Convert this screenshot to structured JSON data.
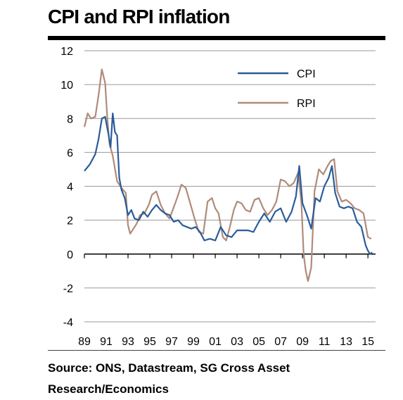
{
  "title": "CPI and RPI inflation",
  "source": "Source: ONS, Datastream, SG Cross Asset Research/Economics",
  "chart_data": {
    "type": "line",
    "title": "CPI and RPI inflation",
    "xlabel": "",
    "ylabel": "",
    "x_range": [
      1989.0,
      2015.7
    ],
    "ylim": [
      -4,
      12
    ],
    "yticks": [
      -4,
      -2,
      0,
      2,
      4,
      6,
      8,
      10,
      12
    ],
    "xtick_labels": [
      "89",
      "91",
      "93",
      "95",
      "97",
      "99",
      "01",
      "03",
      "05",
      "07",
      "09",
      "11",
      "13",
      "15"
    ],
    "xtick_years": [
      1989,
      1991,
      1993,
      1995,
      1997,
      1999,
      2001,
      2003,
      2005,
      2007,
      2009,
      2011,
      2013,
      2015
    ],
    "grid": "horizontal",
    "legend": "top-right",
    "series": [
      {
        "name": "CPI",
        "color": "#2a5c9a",
        "x": [
          1989.0,
          1989.5,
          1990.0,
          1990.3,
          1990.6,
          1990.9,
          1991.2,
          1991.4,
          1991.6,
          1991.8,
          1992.0,
          1992.2,
          1992.4,
          1992.7,
          1993.0,
          1993.3,
          1993.6,
          1994.0,
          1994.4,
          1994.8,
          1995.2,
          1995.6,
          1996.0,
          1996.4,
          1996.8,
          1997.2,
          1997.6,
          1998.0,
          1998.4,
          1998.8,
          1999.2,
          1999.6,
          2000.0,
          2000.5,
          2001.0,
          2001.5,
          2002.0,
          2002.5,
          2003.0,
          2003.5,
          2004.0,
          2004.5,
          2005.0,
          2005.5,
          2006.0,
          2006.5,
          2007.0,
          2007.5,
          2008.0,
          2008.4,
          2008.7,
          2009.0,
          2009.4,
          2009.8,
          2010.2,
          2010.6,
          2011.0,
          2011.4,
          2011.7,
          2012.0,
          2012.4,
          2012.8,
          2013.2,
          2013.6,
          2014.0,
          2014.4,
          2014.8,
          2015.0,
          2015.2,
          2015.4
        ],
        "y": [
          4.9,
          5.3,
          5.9,
          6.8,
          8.0,
          8.1,
          7.1,
          6.3,
          8.3,
          7.2,
          7.0,
          4.5,
          3.8,
          3.3,
          2.3,
          2.6,
          2.1,
          2.0,
          2.5,
          2.2,
          2.6,
          2.9,
          2.6,
          2.4,
          2.3,
          1.9,
          2.0,
          1.7,
          1.6,
          1.5,
          1.6,
          1.3,
          0.8,
          0.9,
          0.8,
          1.6,
          1.1,
          1.0,
          1.4,
          1.4,
          1.4,
          1.3,
          1.9,
          2.4,
          1.9,
          2.5,
          2.7,
          1.9,
          2.5,
          3.4,
          5.2,
          3.0,
          2.3,
          1.5,
          3.3,
          3.1,
          4.0,
          4.5,
          5.2,
          3.6,
          2.8,
          2.7,
          2.8,
          2.7,
          1.9,
          1.6,
          0.5,
          0.2,
          0.0,
          0.1
        ]
      },
      {
        "name": "RPI",
        "color": "#b08b7a",
        "x": [
          1989.0,
          1989.3,
          1989.6,
          1990.0,
          1990.3,
          1990.6,
          1990.9,
          1991.1,
          1991.3,
          1991.6,
          1992.0,
          1992.4,
          1992.8,
          1993.0,
          1993.2,
          1993.5,
          1993.8,
          1994.1,
          1994.5,
          1994.9,
          1995.2,
          1995.6,
          1996.0,
          1996.4,
          1996.8,
          1997.1,
          1997.5,
          1997.9,
          1998.3,
          1998.7,
          1999.1,
          1999.5,
          1999.9,
          2000.3,
          2000.7,
          2001.0,
          2001.3,
          2001.7,
          2002.0,
          2002.3,
          2002.7,
          2003.0,
          2003.4,
          2003.8,
          2004.2,
          2004.6,
          2005.0,
          2005.4,
          2005.8,
          2006.2,
          2006.6,
          2007.0,
          2007.4,
          2007.8,
          2008.2,
          2008.6,
          2008.9,
          2009.1,
          2009.3,
          2009.5,
          2009.8,
          2010.1,
          2010.5,
          2010.9,
          2011.3,
          2011.6,
          2011.9,
          2012.2,
          2012.6,
          2013.0,
          2013.4,
          2013.8,
          2014.2,
          2014.6,
          2015.0,
          2015.3
        ],
        "y": [
          7.5,
          8.3,
          8.0,
          8.1,
          9.4,
          10.9,
          10.1,
          8.0,
          6.5,
          5.8,
          4.3,
          3.9,
          3.6,
          1.7,
          1.2,
          1.5,
          1.8,
          2.3,
          2.4,
          2.9,
          3.5,
          3.7,
          2.9,
          2.4,
          2.1,
          2.6,
          3.3,
          4.1,
          3.9,
          3.0,
          2.1,
          1.3,
          1.2,
          3.1,
          3.3,
          2.7,
          2.4,
          1.0,
          0.8,
          1.5,
          2.6,
          3.1,
          3.0,
          2.6,
          2.5,
          3.2,
          3.3,
          2.7,
          2.3,
          2.6,
          3.1,
          4.4,
          4.3,
          4.0,
          4.2,
          4.8,
          3.0,
          0.0,
          -1.0,
          -1.6,
          -0.8,
          3.7,
          5.0,
          4.7,
          5.2,
          5.5,
          5.6,
          3.7,
          3.1,
          3.2,
          3.0,
          2.7,
          2.6,
          2.4,
          1.0,
          0.9
        ]
      }
    ]
  }
}
